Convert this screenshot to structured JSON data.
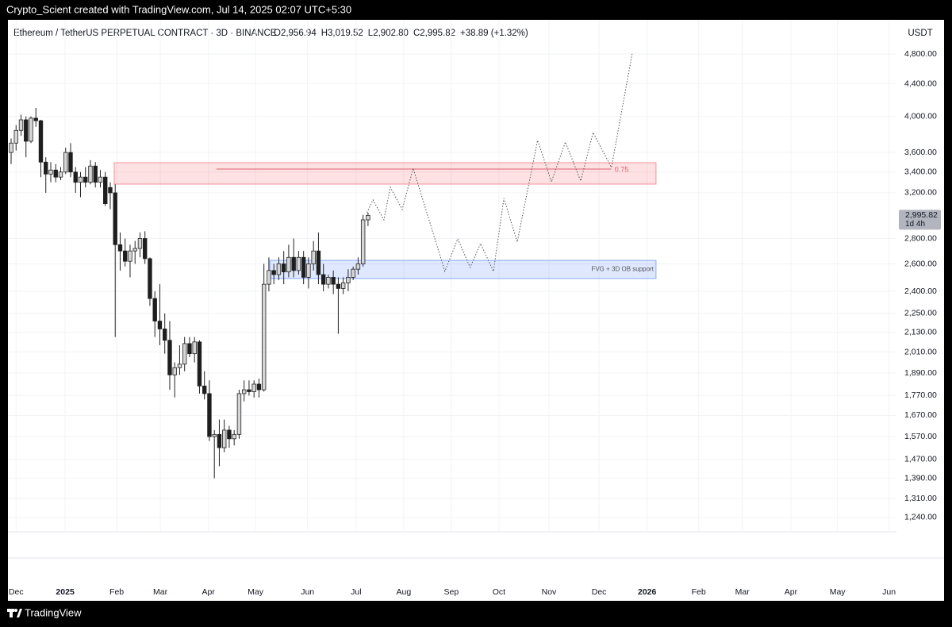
{
  "watermark": "Crypto_Scient created with TradingView.com, Jul 14, 2025 02:07 UTC+5:30",
  "brand": "TradingView",
  "chart_data": {
    "type": "candlestick",
    "title": "Ethereum / TetherUS PERPETUAL CONTRACT · 3D · BINANCE",
    "ohlc_labels": [
      "O2,956.94",
      "H3,019.52",
      "L2,902.80",
      "C2,995.82",
      "+38.89 (+1.32%)"
    ],
    "currency": "USDT",
    "log_scale": true,
    "grid": true,
    "ylim": [
      1189,
      5122
    ],
    "yticks": [
      {
        "value": 4800,
        "label": "4,800.00"
      },
      {
        "value": 4400,
        "label": "4,400.00"
      },
      {
        "value": 4000,
        "label": "4,000.00"
      },
      {
        "value": 3600,
        "label": "3,600.00"
      },
      {
        "value": 3400,
        "label": "3,400.00"
      },
      {
        "value": 3200,
        "label": "3,200.00"
      },
      {
        "value": 2800,
        "label": "2,800.00"
      },
      {
        "value": 2600,
        "label": "2,600.00"
      },
      {
        "value": 2400,
        "label": "2,400.00"
      },
      {
        "value": 2250,
        "label": "2,250.00"
      },
      {
        "value": 2130,
        "label": "2,130.00"
      },
      {
        "value": 2010,
        "label": "2,010.00"
      },
      {
        "value": 1890,
        "label": "1,890.00"
      },
      {
        "value": 1770,
        "label": "1,770.00"
      },
      {
        "value": 1670,
        "label": "1,670.00"
      },
      {
        "value": 1570,
        "label": "1,570.00"
      },
      {
        "value": 1470,
        "label": "1,470.00"
      },
      {
        "value": 1390,
        "label": "1,390.00"
      },
      {
        "value": 1310,
        "label": "1,310.00"
      },
      {
        "value": 1240,
        "label": "1,240.00"
      }
    ],
    "xlim": [
      -0.64,
      178.6
    ],
    "xticks": [
      {
        "value": 1,
        "label": "Dec"
      },
      {
        "value": 10.9,
        "label": "2025"
      },
      {
        "value": 21.3,
        "label": "Feb"
      },
      {
        "value": 30.1,
        "label": "Mar"
      },
      {
        "value": 39.8,
        "label": "Apr"
      },
      {
        "value": 49.3,
        "label": "May"
      },
      {
        "value": 59.8,
        "label": "Jun"
      },
      {
        "value": 69.6,
        "label": "Jul"
      },
      {
        "value": 79.2,
        "label": "Aug"
      },
      {
        "value": 88.8,
        "label": "Sep"
      },
      {
        "value": 98.4,
        "label": "Oct"
      },
      {
        "value": 108.5,
        "label": "Nov"
      },
      {
        "value": 118.6,
        "label": "Dec"
      },
      {
        "value": 128.3,
        "label": "2026"
      },
      {
        "value": 138.7,
        "label": "Feb"
      },
      {
        "value": 147.5,
        "label": "Mar"
      },
      {
        "value": 157.3,
        "label": "Apr"
      },
      {
        "value": 166.7,
        "label": "May"
      },
      {
        "value": 177.1,
        "label": "Jun"
      }
    ],
    "up_color": "#d6d6d6",
    "down_color": "#1e1e1e",
    "open": [
      3600,
      3700,
      3840,
      3960,
      3720,
      3980,
      3950,
      3500,
      3380,
      3420,
      3350,
      3400,
      3600,
      3400,
      3300,
      3350,
      3300,
      3460,
      3300,
      3350,
      3250,
      3200,
      2750,
      2700,
      2620,
      2700,
      2720,
      2800,
      2640,
      2350,
      2200,
      2150,
      2080,
      1880,
      1920,
      1940,
      2060,
      2000,
      2070,
      1820,
      1780,
      1570,
      1580,
      1520,
      1600,
      1560,
      1580,
      1780,
      1800,
      1790,
      1830,
      1800,
      2450,
      2550,
      2520,
      2600,
      2540,
      2650,
      2550,
      2650,
      2500,
      2600,
      2700,
      2520,
      2450,
      2500,
      2450,
      2420,
      2460,
      2500,
      2560,
      2600,
      2956.94
    ],
    "high": [
      3750,
      3900,
      4020,
      4000,
      4000,
      4100,
      3960,
      3550,
      3500,
      3480,
      3450,
      3650,
      3700,
      3450,
      3400,
      3450,
      3520,
      3500,
      3420,
      3400,
      3300,
      3280,
      2850,
      2800,
      2750,
      2780,
      2850,
      2860,
      2650,
      2400,
      2450,
      2250,
      2200,
      1950,
      2050,
      2100,
      2100,
      2100,
      2080,
      1900,
      1850,
      1600,
      1650,
      1650,
      1620,
      1600,
      1800,
      1850,
      1850,
      1850,
      1860,
      2600,
      2650,
      2600,
      2650,
      2700,
      2750,
      2800,
      2700,
      2700,
      2650,
      2780,
      2850,
      2600,
      2520,
      2550,
      2500,
      2500,
      2560,
      2580,
      2650,
      3000,
      3019.52
    ],
    "low": [
      3480,
      3620,
      3780,
      3550,
      3700,
      3880,
      3350,
      3200,
      3300,
      3300,
      3320,
      3380,
      3350,
      3200,
      3160,
      3250,
      3280,
      3250,
      3250,
      3080,
      3050,
      2100,
      2550,
      2580,
      2500,
      2600,
      2650,
      2600,
      2300,
      2100,
      2050,
      2000,
      1800,
      1760,
      1880,
      1900,
      1980,
      1950,
      1780,
      1750,
      1550,
      1390,
      1440,
      1500,
      1520,
      1530,
      1560,
      1740,
      1770,
      1760,
      1760,
      1790,
      2400,
      2450,
      2480,
      2450,
      2500,
      2500,
      2520,
      2450,
      2420,
      2550,
      2450,
      2400,
      2420,
      2380,
      2120,
      2380,
      2400,
      2480,
      2520,
      2580,
      2902.8
    ],
    "close": [
      3700,
      3840,
      3960,
      3720,
      3980,
      3950,
      3500,
      3380,
      3420,
      3350,
      3400,
      3600,
      3400,
      3300,
      3350,
      3300,
      3460,
      3300,
      3350,
      3100,
      3200,
      2750,
      2700,
      2620,
      2700,
      2720,
      2800,
      2640,
      2350,
      2200,
      2150,
      2080,
      1880,
      1920,
      1940,
      2060,
      2000,
      2070,
      1820,
      1780,
      1570,
      1580,
      1520,
      1600,
      1560,
      1580,
      1780,
      1800,
      1790,
      1830,
      1800,
      2450,
      2550,
      2520,
      2600,
      2540,
      2650,
      2550,
      2650,
      2500,
      2600,
      2700,
      2520,
      2450,
      2500,
      2450,
      2420,
      2460,
      2500,
      2560,
      2600,
      2956.94,
      2995.82
    ],
    "price_label": {
      "value": 2995.82,
      "label": "2,995.82"
    },
    "countdown": "1d 4h",
    "projection": {
      "x": [
        71.8,
        73,
        75.2,
        76.5,
        78.9,
        81.1,
        87.5,
        90.1,
        92.6,
        94.7,
        97.3,
        99.4,
        102.1,
        106.2,
        109,
        111.8,
        114.9,
        117.4,
        121.1,
        125.3
      ],
      "values": [
        3020,
        3134,
        2957,
        3252,
        3048,
        3438,
        2544,
        2797,
        2573,
        2759,
        2544,
        3148,
        2772,
        3729,
        3305,
        3711,
        3313,
        3816,
        3446,
        4810
      ]
    },
    "zones": [
      {
        "x": [
          20.8,
          130.1
        ],
        "top": 3494,
        "bottom": 3282,
        "color": "#f23645"
      },
      {
        "x": [
          52.2,
          130.1
        ],
        "top": 2627,
        "bottom": 2491,
        "color": "#2962ff",
        "label": "FVG + 3D OB support"
      }
    ],
    "level": {
      "x": [
        41.4,
        121.1
      ],
      "value": 3430,
      "label": "0.75",
      "color": "#e06070"
    }
  }
}
